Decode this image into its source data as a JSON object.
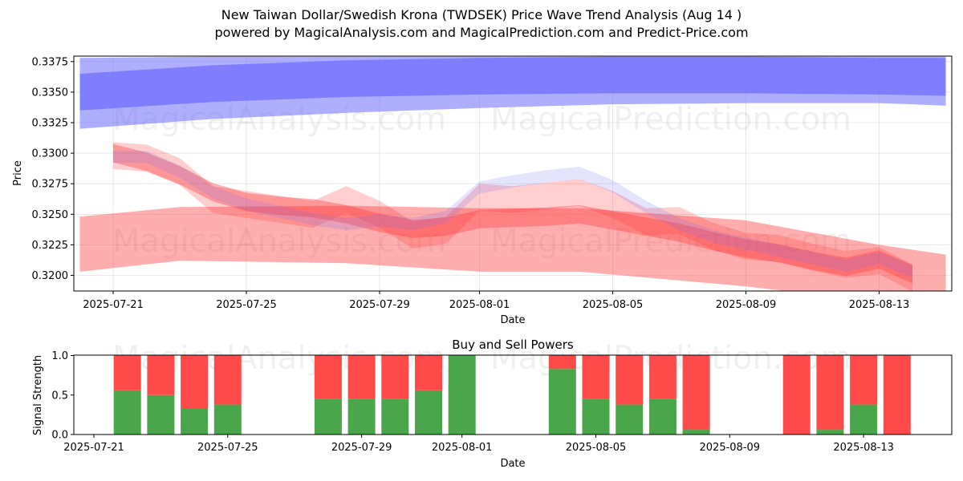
{
  "title": "New Taiwan Dollar/Swedish Krona (TWDSEK) Price Wave Trend Analysis (Aug 14 )",
  "subtitle": "powered by MagicalAnalysis.com and MagicalPrediction.com and Predict-Price.com",
  "watermarks": [
    "MagicalAnalysis.com",
    "MagicalPrediction.com"
  ],
  "colors": {
    "blue": "#6b6bff",
    "red": "#ff3b3b",
    "buy": "#4aa64a",
    "sell": "#ff4a4a"
  },
  "chart_data": [
    {
      "type": "area",
      "xlabel": "Date",
      "ylabel": "Price",
      "ylim": [
        0.32,
        0.3379
      ],
      "yticks": [
        "0.3200",
        "0.3225",
        "0.3250",
        "0.3275",
        "0.3300",
        "0.3325",
        "0.3350",
        "0.3375"
      ],
      "xtick_labels": [
        "2025-07-21",
        "2025-07-25",
        "2025-07-29",
        "2025-08-01",
        "2025-08-05",
        "2025-08-09",
        "2025-08-13"
      ],
      "grid": true,
      "series": [
        {
          "color": "blue",
          "x": [
            "2025-07-20",
            "2025-07-24",
            "2025-07-28",
            "2025-08-01",
            "2025-08-05",
            "2025-08-09",
            "2025-08-13",
            "2025-08-15"
          ],
          "upper": [
            0.3365,
            0.3372,
            0.3376,
            0.3378,
            0.3379,
            0.3379,
            0.3378,
            0.3378
          ],
          "lower": [
            0.3335,
            0.3342,
            0.3346,
            0.3348,
            0.3349,
            0.3349,
            0.3348,
            0.3347
          ]
        },
        {
          "color": "blue",
          "x": [
            "2025-07-20",
            "2025-07-24",
            "2025-07-28",
            "2025-08-01",
            "2025-08-05",
            "2025-08-09",
            "2025-08-13",
            "2025-08-15"
          ],
          "upper": [
            0.3378,
            0.3379,
            0.3379,
            0.3379,
            0.3379,
            0.3379,
            0.3379,
            0.3379
          ],
          "lower": [
            0.332,
            0.3328,
            0.3333,
            0.3337,
            0.334,
            0.3341,
            0.3341,
            0.3339
          ]
        },
        {
          "color": "red",
          "x": [
            "2025-07-20",
            "2025-07-23",
            "2025-07-28",
            "2025-08-01",
            "2025-08-04",
            "2025-08-09",
            "2025-08-13",
            "2025-08-15"
          ],
          "upper": [
            0.3248,
            0.3256,
            0.3257,
            0.3255,
            0.3255,
            0.3245,
            0.3225,
            0.3217
          ],
          "lower": [
            0.3203,
            0.3212,
            0.321,
            0.3203,
            0.3203,
            0.3191,
            0.3178,
            0.3174
          ]
        },
        {
          "color": "red",
          "x": [
            "2025-07-21",
            "2025-07-22",
            "2025-07-23",
            "2025-07-24",
            "2025-07-25",
            "2025-07-26",
            "2025-07-27",
            "2025-07-28",
            "2025-07-29",
            "2025-07-30",
            "2025-07-31",
            "2025-08-01",
            "2025-08-02",
            "2025-08-03",
            "2025-08-04",
            "2025-08-05",
            "2025-08-06",
            "2025-08-07",
            "2025-08-08",
            "2025-08-09",
            "2025-08-10",
            "2025-08-11",
            "2025-08-12",
            "2025-08-13",
            "2025-08-14"
          ],
          "mid": [
            0.33,
            0.3293,
            0.3282,
            0.3268,
            0.326,
            0.3257,
            0.3255,
            0.325,
            0.3243,
            0.3238,
            0.324,
            0.3246,
            0.3247,
            0.3248,
            0.325,
            0.3245,
            0.324,
            0.3235,
            0.3228,
            0.3222,
            0.3218,
            0.3212,
            0.3207,
            0.3213,
            0.3201
          ],
          "band": 0.0015
        },
        {
          "color": "red",
          "x": [
            "2025-07-21",
            "2025-07-22",
            "2025-07-23",
            "2025-07-24",
            "2025-07-25",
            "2025-07-26",
            "2025-07-27",
            "2025-07-28",
            "2025-07-29",
            "2025-07-30",
            "2025-07-31",
            "2025-08-01",
            "2025-08-02",
            "2025-08-03",
            "2025-08-04",
            "2025-08-05",
            "2025-08-06",
            "2025-08-07",
            "2025-08-08",
            "2025-08-09",
            "2025-08-10",
            "2025-08-11",
            "2025-08-12",
            "2025-08-13",
            "2025-08-14"
          ],
          "mid": [
            0.3298,
            0.3296,
            0.3285,
            0.3262,
            0.3258,
            0.3254,
            0.325,
            0.3262,
            0.325,
            0.3233,
            0.3237,
            0.3264,
            0.3262,
            0.3265,
            0.3268,
            0.3258,
            0.3244,
            0.3245,
            0.3232,
            0.3224,
            0.3222,
            0.3215,
            0.3209,
            0.3212,
            0.3198
          ],
          "band": 0.0022
        },
        {
          "color": "blue",
          "x": [
            "2025-07-21",
            "2025-07-22",
            "2025-07-23",
            "2025-07-24",
            "2025-07-25",
            "2025-07-26",
            "2025-07-27",
            "2025-07-28",
            "2025-07-29",
            "2025-07-30",
            "2025-07-31",
            "2025-08-01",
            "2025-08-02",
            "2025-08-03",
            "2025-08-04",
            "2025-08-05",
            "2025-08-06",
            "2025-08-07",
            "2025-08-08",
            "2025-08-09",
            "2025-08-10",
            "2025-08-11",
            "2025-08-12",
            "2025-08-13",
            "2025-08-14"
          ],
          "mid": [
            0.3297,
            0.3297,
            0.3285,
            0.3268,
            0.3258,
            0.3252,
            0.3246,
            0.3242,
            0.3245,
            0.3242,
            0.3248,
            0.3272,
            0.3277,
            0.3281,
            0.3284,
            0.3273,
            0.3256,
            0.3242,
            0.3232,
            0.3226,
            0.322,
            0.3214,
            0.3208,
            0.3214,
            0.3203
          ],
          "band": 0.001
        }
      ]
    },
    {
      "type": "bar",
      "title": "Buy and Sell Powers",
      "xlabel": "Date",
      "ylabel": "Signal Strength",
      "ylim": [
        0,
        1
      ],
      "yticks": [
        "0.0",
        "0.5",
        "1.0"
      ],
      "xtick_labels": [
        "2025-07-21",
        "2025-07-25",
        "2025-07-29",
        "2025-08-01",
        "2025-08-05",
        "2025-08-09",
        "2025-08-13"
      ],
      "categories": [
        "2025-07-22",
        "2025-07-23",
        "2025-07-24",
        "2025-07-25",
        "2025-07-28",
        "2025-07-29",
        "2025-07-30",
        "2025-07-31",
        "2025-08-01",
        "2025-08-04",
        "2025-08-05",
        "2025-08-06",
        "2025-08-07",
        "2025-08-08",
        "2025-08-11",
        "2025-08-12",
        "2025-08-13",
        "2025-08-14"
      ],
      "series": [
        {
          "color": "buy",
          "values": [
            0.56,
            0.5,
            0.33,
            0.38,
            0.45,
            0.45,
            0.45,
            0.56,
            1.0,
            0.83,
            0.45,
            0.38,
            0.45,
            0.06,
            0.0,
            0.06,
            0.38,
            0.0
          ]
        },
        {
          "color": "sell",
          "values": [
            0.44,
            0.5,
            0.67,
            0.62,
            0.55,
            0.55,
            0.55,
            0.44,
            0.0,
            0.17,
            0.55,
            0.62,
            0.55,
            0.94,
            1.0,
            0.94,
            0.62,
            1.0
          ]
        }
      ]
    }
  ]
}
